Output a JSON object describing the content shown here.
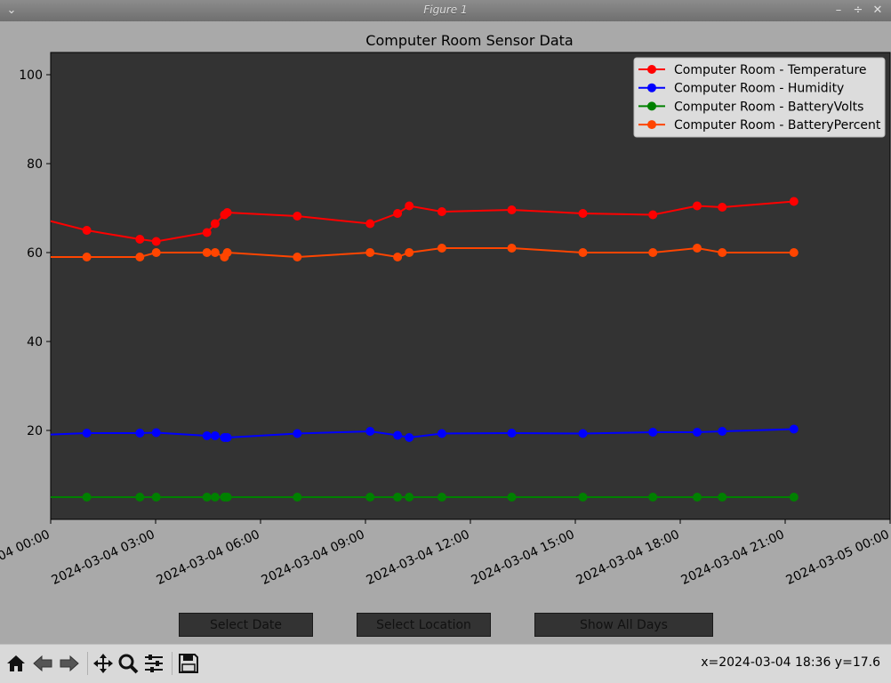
{
  "window": {
    "title": "Figure 1",
    "menu_icon": "chevron-down-icon",
    "controls": [
      "minimize-icon",
      "maximize-icon",
      "close-icon"
    ]
  },
  "buttons": {
    "select_date": "Select Date",
    "select_location": "Select Location",
    "show_all_days": "Show All Days"
  },
  "toolbar": {
    "icons": [
      "home-icon",
      "back-icon",
      "forward-icon",
      "pan-icon",
      "zoom-icon",
      "configure-subplots-icon",
      "save-icon"
    ],
    "coordinates": "x=2024-03-04 18:36 y=17.6"
  },
  "colors": {
    "figure_bg": "#a9a9a9",
    "axes_bg": "#333333",
    "temperature": "#ff0000",
    "humidity": "#0000ff",
    "battery_volts": "#008000",
    "battery_percent": "#ff4500"
  },
  "chart_data": {
    "type": "line",
    "title": "Computer Room Sensor Data",
    "xlabel": "",
    "ylabel": "",
    "xlim": [
      "2024-03-04 00:00",
      "2024-03-05 00:00"
    ],
    "ylim": [
      0,
      105
    ],
    "xticks": [
      "2024-03-04 00:00",
      "2024-03-04 03:00",
      "2024-03-04 06:00",
      "2024-03-04 09:00",
      "2024-03-04 12:00",
      "2024-03-04 15:00",
      "2024-03-04 18:00",
      "2024-03-04 21:00",
      "2024-03-05 00:00"
    ],
    "yticks": [
      20,
      40,
      60,
      80,
      100
    ],
    "legend_position": "top-right",
    "grid": false,
    "series": [
      {
        "name": "Computer Room - Temperature",
        "color": "#ff0000",
        "x": [
          "2024-03-03 23:47",
          "2024-03-04 01:02",
          "2024-03-04 02:33",
          "2024-03-04 03:01",
          "2024-03-04 04:28",
          "2024-03-04 04:42",
          "2024-03-04 04:58",
          "2024-03-04 05:03",
          "2024-03-04 07:03",
          "2024-03-04 09:08",
          "2024-03-04 09:55",
          "2024-03-04 10:15",
          "2024-03-04 11:11",
          "2024-03-04 13:11",
          "2024-03-04 15:13",
          "2024-03-04 17:13",
          "2024-03-04 18:29",
          "2024-03-04 19:12",
          "2024-03-04 21:15"
        ],
        "values": [
          67.5,
          65.0,
          63.0,
          62.5,
          64.5,
          66.5,
          68.5,
          69.0,
          68.2,
          66.5,
          68.8,
          70.5,
          69.2,
          69.6,
          68.8,
          68.5,
          70.5,
          70.2,
          71.5
        ]
      },
      {
        "name": "Computer Room - Humidity",
        "color": "#0000ff",
        "x": [
          "2024-03-03 23:47",
          "2024-03-04 01:02",
          "2024-03-04 02:33",
          "2024-03-04 03:01",
          "2024-03-04 04:28",
          "2024-03-04 04:42",
          "2024-03-04 04:58",
          "2024-03-04 05:03",
          "2024-03-04 07:03",
          "2024-03-04 09:08",
          "2024-03-04 09:55",
          "2024-03-04 10:15",
          "2024-03-04 11:11",
          "2024-03-04 13:11",
          "2024-03-04 15:13",
          "2024-03-04 17:13",
          "2024-03-04 18:29",
          "2024-03-04 19:12",
          "2024-03-04 21:15"
        ],
        "values": [
          19.0,
          19.4,
          19.4,
          19.5,
          18.8,
          18.8,
          18.4,
          18.4,
          19.3,
          19.8,
          18.9,
          18.4,
          19.3,
          19.4,
          19.3,
          19.6,
          19.6,
          19.8,
          20.3
        ]
      },
      {
        "name": "Computer Room - BatteryVolts",
        "color": "#008000",
        "x": [
          "2024-03-03 23:47",
          "2024-03-04 01:02",
          "2024-03-04 02:33",
          "2024-03-04 03:01",
          "2024-03-04 04:28",
          "2024-03-04 04:42",
          "2024-03-04 04:58",
          "2024-03-04 05:03",
          "2024-03-04 07:03",
          "2024-03-04 09:08",
          "2024-03-04 09:55",
          "2024-03-04 10:15",
          "2024-03-04 11:11",
          "2024-03-04 13:11",
          "2024-03-04 15:13",
          "2024-03-04 17:13",
          "2024-03-04 18:29",
          "2024-03-04 19:12",
          "2024-03-04 21:15"
        ],
        "values": [
          5.0,
          5.0,
          5.0,
          5.0,
          5.0,
          5.0,
          5.0,
          5.0,
          5.0,
          5.0,
          5.0,
          5.0,
          5.0,
          5.0,
          5.0,
          5.0,
          5.0,
          5.0,
          5.0
        ]
      },
      {
        "name": "Computer Room - BatteryPercent",
        "color": "#ff4500",
        "x": [
          "2024-03-03 23:47",
          "2024-03-04 01:02",
          "2024-03-04 02:33",
          "2024-03-04 03:01",
          "2024-03-04 04:28",
          "2024-03-04 04:42",
          "2024-03-04 04:58",
          "2024-03-04 05:03",
          "2024-03-04 07:03",
          "2024-03-04 09:08",
          "2024-03-04 09:55",
          "2024-03-04 10:15",
          "2024-03-04 11:11",
          "2024-03-04 13:11",
          "2024-03-04 15:13",
          "2024-03-04 17:13",
          "2024-03-04 18:29",
          "2024-03-04 19:12",
          "2024-03-04 21:15"
        ],
        "values": [
          59,
          59,
          59,
          60,
          60,
          60,
          59,
          60,
          59,
          60,
          59,
          60,
          61,
          61,
          60,
          60,
          61,
          60,
          60
        ]
      }
    ]
  }
}
